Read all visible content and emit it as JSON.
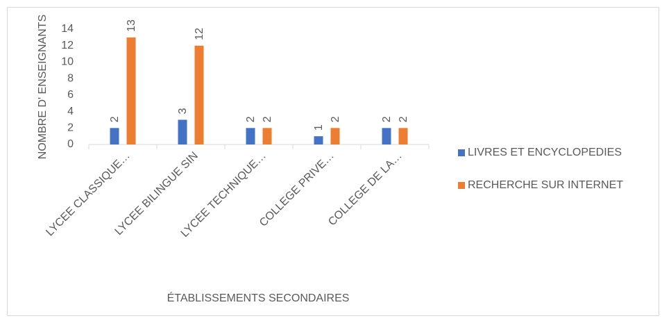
{
  "chart_data": {
    "type": "bar",
    "categories": [
      "LYCEE CLASSIQUE…",
      "LYCEE BILINGUE SIN",
      "LYCEE TECHNIQUE…",
      "COLLEGE PRIVE…",
      "COLLEGE DE LA…"
    ],
    "series": [
      {
        "name": "LIVRES ET ENCYCLOPEDIES",
        "color": "#4472c4",
        "values": [
          2,
          3,
          2,
          1,
          2
        ]
      },
      {
        "name": "RECHERCHE SUR INTERNET",
        "color": "#ed7d31",
        "values": [
          13,
          12,
          2,
          2,
          2
        ]
      }
    ],
    "ylim": [
      0,
      14
    ],
    "yticks": [
      0,
      2,
      4,
      6,
      8,
      10,
      12,
      14
    ],
    "y_label": "NOMBRE D' ENSEIGNANTS",
    "x_label": "ÉTABLISSEMENTS SECONDAIRES",
    "grid": false,
    "legend": "right"
  }
}
